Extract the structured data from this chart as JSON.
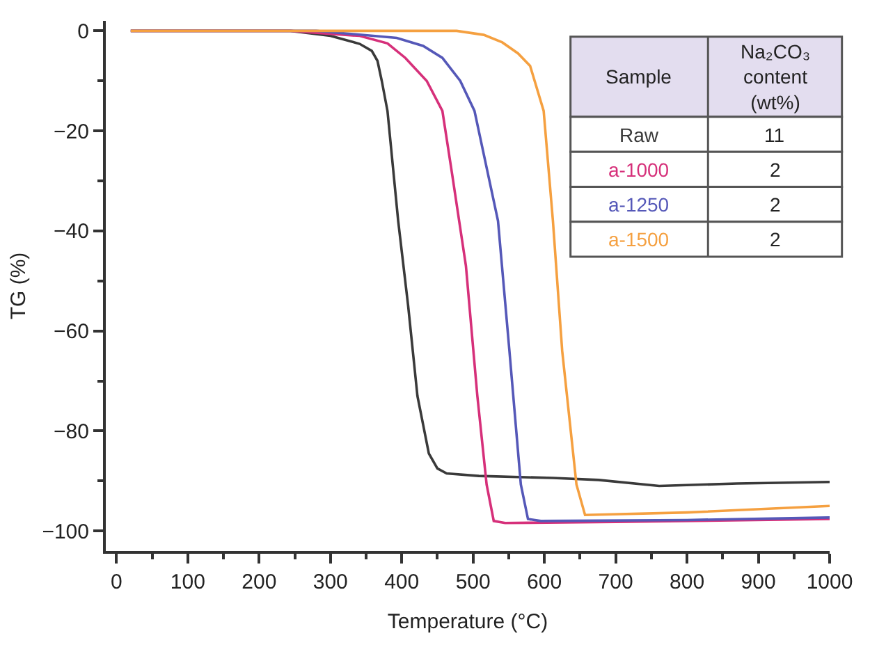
{
  "chart_data": {
    "type": "line",
    "xlabel": "Temperature (°C)",
    "ylabel": "TG (%)",
    "xlim": [
      -15,
      1000
    ],
    "xticks": [
      0,
      100,
      200,
      300,
      400,
      500,
      600,
      700,
      800,
      900,
      1000
    ],
    "ylim": [
      -104,
      2
    ],
    "yticks": [
      {
        "value": 0,
        "label": "0"
      },
      {
        "value": -20,
        "label": "−20"
      },
      {
        "value": -40,
        "label": "−40"
      },
      {
        "value": -60,
        "label": "−60"
      },
      {
        "value": -80,
        "label": "−80"
      },
      {
        "value": -100,
        "label": "−100"
      }
    ],
    "marker": "none",
    "line_style": "solid",
    "annotations": [
      "Sample",
      "Na₂CO₃ content (wt%)",
      "11",
      "2",
      "2",
      "2"
    ],
    "series": [
      {
        "name": "Raw",
        "color": "#3a3a3a",
        "x": [
          20,
          150,
          244,
          300,
          341,
          358,
          366,
          372,
          380,
          395,
          409,
          422,
          438,
          450,
          463,
          508,
          612,
          676,
          761,
          870,
          1000
        ],
        "values": [
          0,
          0,
          0,
          -1,
          -2.6,
          -4,
          -6,
          -10,
          -16,
          -38,
          -55,
          -73,
          -84.5,
          -87.5,
          -88.5,
          -89,
          -89.4,
          -89.8,
          -91,
          -90.5,
          -90.2
        ]
      },
      {
        "name": "a-1000",
        "color": "#d6307a",
        "x": [
          20,
          150,
          244,
          341,
          380,
          405,
          435,
          457,
          471,
          490,
          506,
          519,
          529,
          545,
          700,
          1000
        ],
        "values": [
          0,
          0,
          0,
          -1,
          -2.5,
          -5.4,
          -10,
          -16,
          -29,
          -47,
          -73,
          -90.7,
          -98,
          -98.4,
          -98.2,
          -97.6
        ]
      },
      {
        "name": "a-1250",
        "color": "#5558b8",
        "x": [
          20,
          150,
          280,
          393,
          430,
          457,
          482,
          502,
          535,
          551,
          567,
          577,
          595,
          800,
          1000
        ],
        "values": [
          0,
          0,
          0,
          -1.4,
          -3,
          -5.4,
          -10,
          -16,
          -38,
          -64,
          -90.7,
          -97.6,
          -98,
          -97.8,
          -97.3
        ]
      },
      {
        "name": "a-1500",
        "color": "#f5a040",
        "x": [
          20,
          150,
          350,
          477,
          515,
          541,
          563,
          580,
          599,
          612,
          625,
          645,
          657,
          800,
          1000
        ],
        "values": [
          0,
          0,
          0,
          0,
          -0.8,
          -2.3,
          -4.5,
          -7,
          -16,
          -38,
          -64,
          -90.7,
          -96.8,
          -96.3,
          -95
        ]
      }
    ]
  }
}
